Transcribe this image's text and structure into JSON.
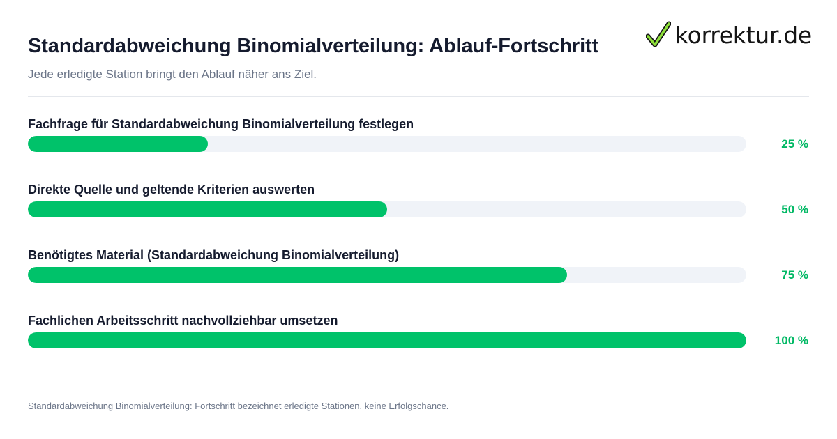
{
  "header": {
    "title": "Standardabweichung Binomialverteilung: Ablauf-Fortschritt",
    "subtitle": "Jede erledigte Station bringt den Ablauf näher ans Ziel."
  },
  "logo": {
    "text": "korrektur.de",
    "icon": "checkmark-icon",
    "check_color": "#8ee03a"
  },
  "colors": {
    "fill": "#00c26a",
    "track": "#f0f3f8",
    "percent_text": "#00b864"
  },
  "chart_data": {
    "type": "bar",
    "orientation": "horizontal",
    "categories": [
      "Fachfrage für Standardabweichung Binomialverteilung festlegen",
      "Direkte Quelle und geltende Kriterien auswerten",
      "Benötigtes Material (Standardabweichung Binomialverteilung)",
      "Fachlichen Arbeitsschritt nachvollziehbar umsetzen"
    ],
    "values": [
      25,
      50,
      75,
      100
    ],
    "value_labels": [
      "25 %",
      "50 %",
      "75 %",
      "100 %"
    ],
    "xlim": [
      0,
      100
    ],
    "grid": false
  },
  "footnote": "Standardabweichung Binomialverteilung: Fortschritt bezeichnet erledigte Stationen, keine Erfolgschance."
}
